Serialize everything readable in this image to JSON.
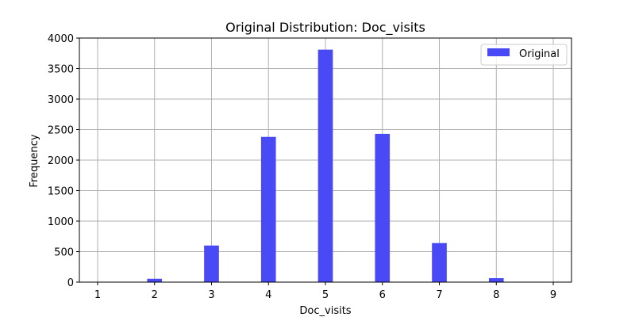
{
  "chart_data": {
    "type": "bar",
    "title": "Original Distribution: Doc_visits",
    "xlabel": "Doc_visits",
    "ylabel": "Frequency",
    "x_ticks": [
      1,
      2,
      3,
      4,
      5,
      6,
      7,
      8,
      9
    ],
    "y_ticks": [
      0,
      500,
      1000,
      1500,
      2000,
      2500,
      3000,
      3500,
      4000
    ],
    "xlim": [
      0.68,
      9.32
    ],
    "ylim": [
      0,
      4000
    ],
    "bar_width": 0.26,
    "grid": true,
    "legend_position": "top-right",
    "series": [
      {
        "name": "Original",
        "color": "#4949f5",
        "points": [
          {
            "x": 2,
            "y": 55
          },
          {
            "x": 3,
            "y": 600
          },
          {
            "x": 4,
            "y": 2380
          },
          {
            "x": 5,
            "y": 3810
          },
          {
            "x": 6,
            "y": 2430
          },
          {
            "x": 7,
            "y": 640
          },
          {
            "x": 8,
            "y": 65
          }
        ]
      }
    ]
  }
}
